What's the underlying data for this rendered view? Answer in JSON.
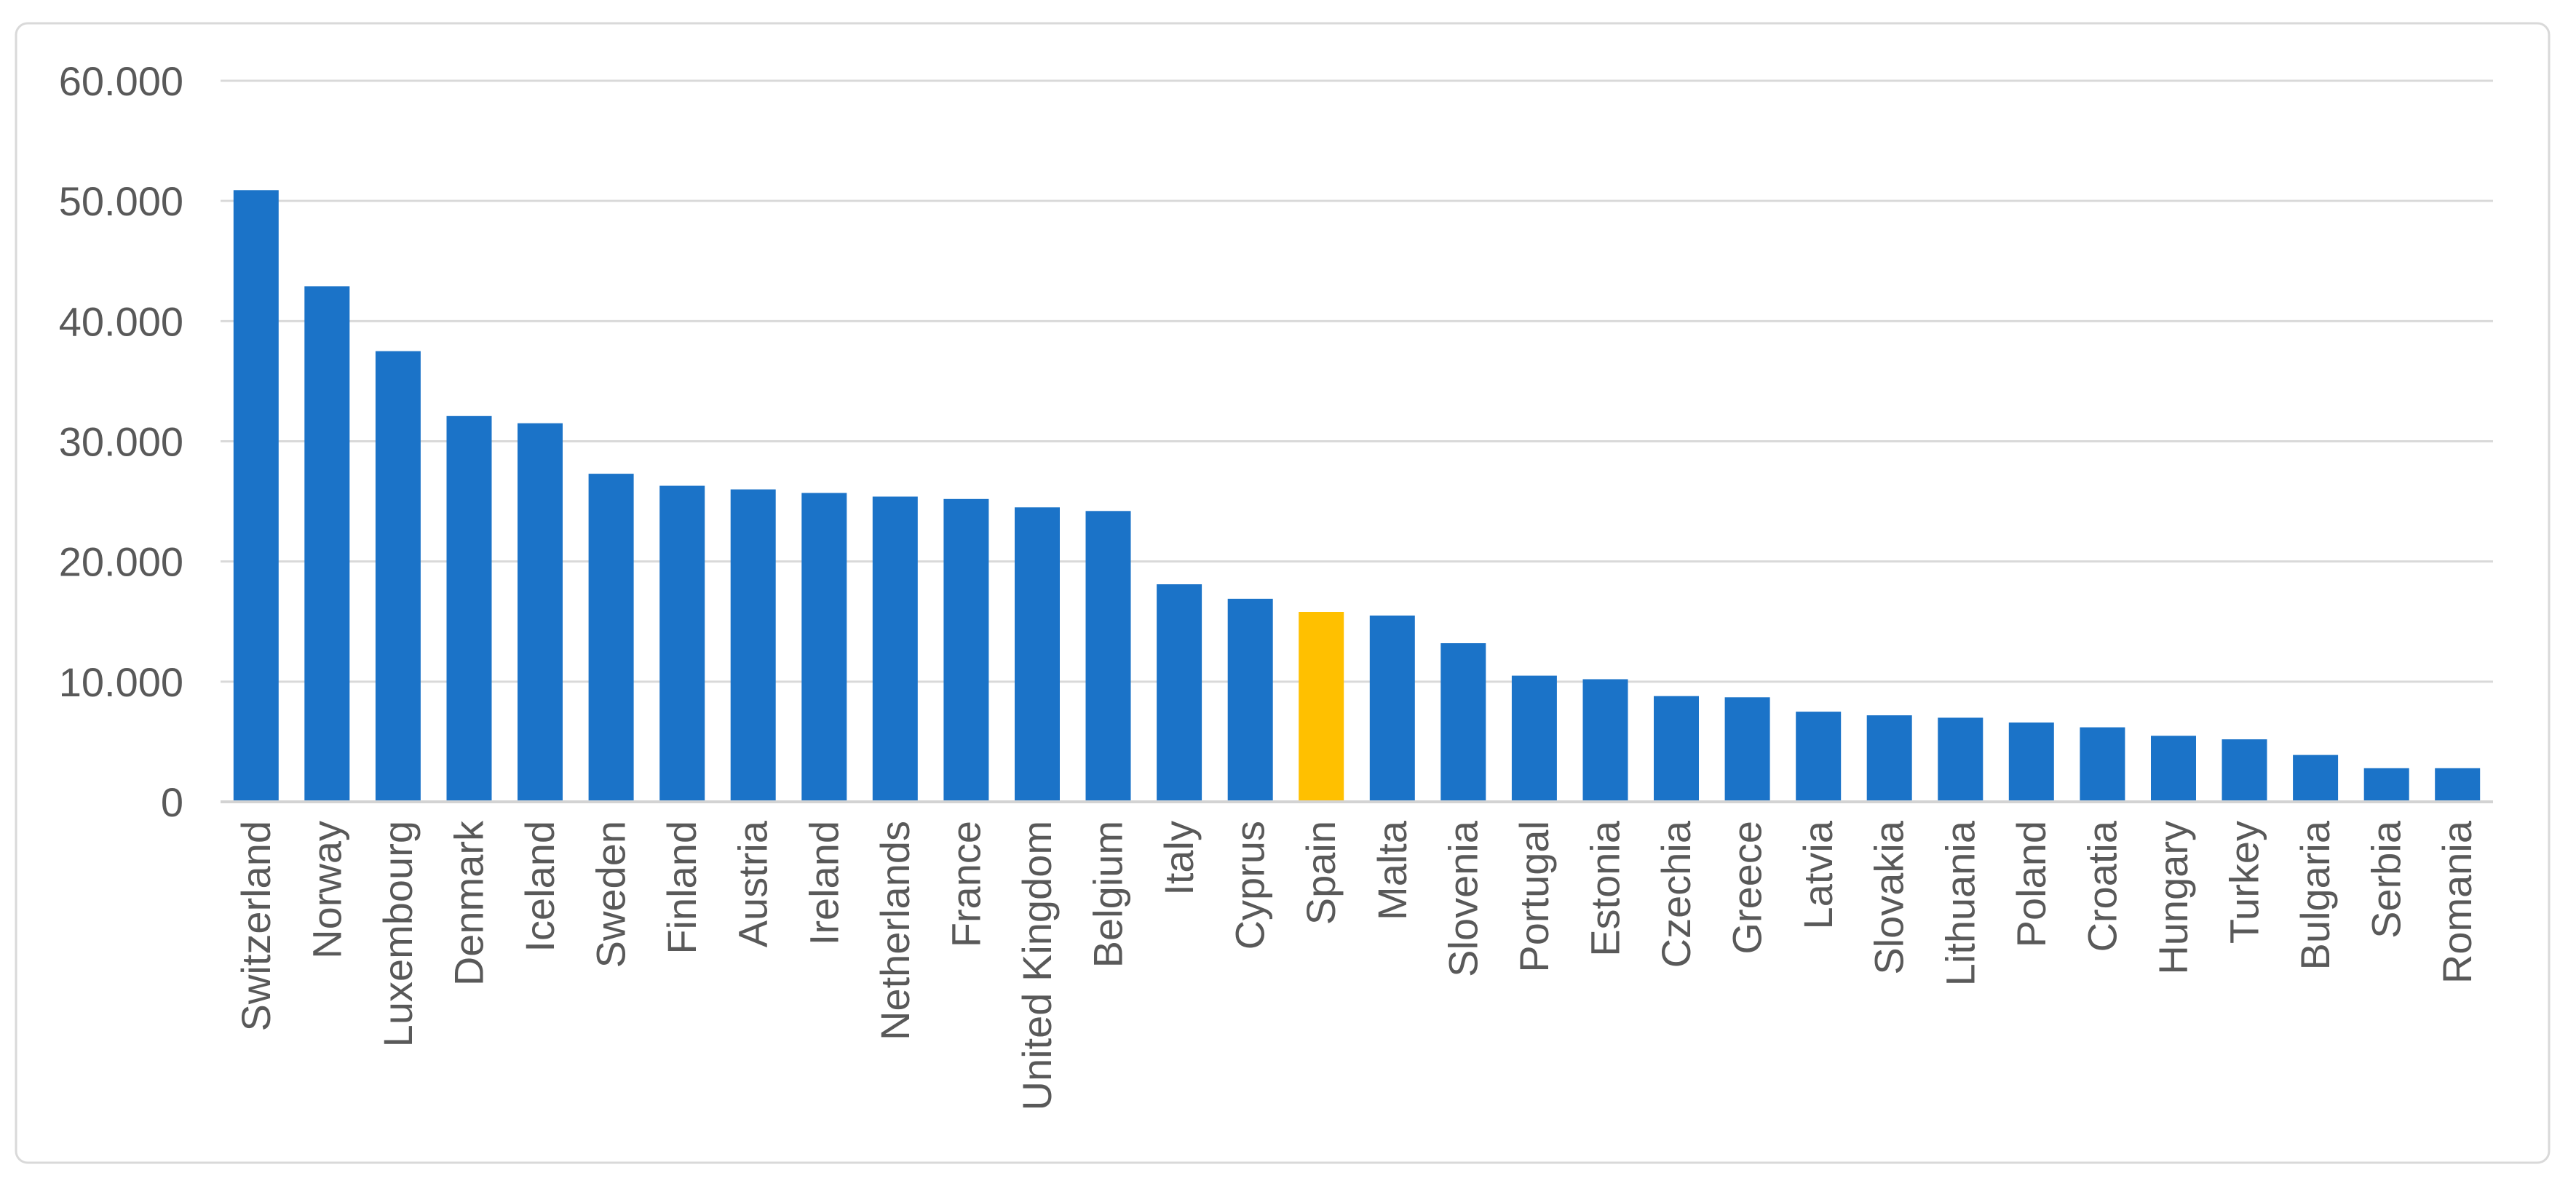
{
  "chart_data": {
    "type": "bar",
    "title": "",
    "xlabel": "",
    "ylabel": "",
    "legend": false,
    "grid": true,
    "categories": [
      "Switzerland",
      "Norway",
      "Luxembourg",
      "Denmark",
      "Iceland",
      "Sweden",
      "Finland",
      "Austria",
      "Ireland",
      "Netherlands",
      "France",
      "United Kingdom",
      "Belgium",
      "Italy",
      "Cyprus",
      "Spain",
      "Malta",
      "Slovenia",
      "Portugal",
      "Estonia",
      "Czechia",
      "Greece",
      "Latvia",
      "Slovakia",
      "Lithuania",
      "Poland",
      "Croatia",
      "Hungary",
      "Turkey",
      "Bulgaria",
      "Serbia",
      "Romania"
    ],
    "values": [
      50900,
      42900,
      37500,
      32100,
      31500,
      27300,
      26300,
      26000,
      25700,
      25400,
      25200,
      24500,
      24200,
      18100,
      16900,
      15800,
      15500,
      13200,
      10500,
      10200,
      8800,
      8700,
      7500,
      7200,
      7000,
      6600,
      6200,
      5500,
      5200,
      3900,
      2800,
      2800
    ],
    "highlight": {
      "category": "Spain",
      "color": "#FFC000"
    },
    "bar_color": "#1B73C8",
    "y_axis": {
      "min": 0,
      "max": 60000,
      "step": 10000,
      "ticks": [
        "0",
        "10.000",
        "20.000",
        "30.000",
        "40.000",
        "50.000",
        "60.000"
      ]
    },
    "colors": {
      "gridline": "#D9D9D9",
      "axis_line": "#D3D3D3",
      "tick_text": "#595959",
      "frame_border": "#D9D9D9",
      "background": "#FFFFFF"
    }
  }
}
